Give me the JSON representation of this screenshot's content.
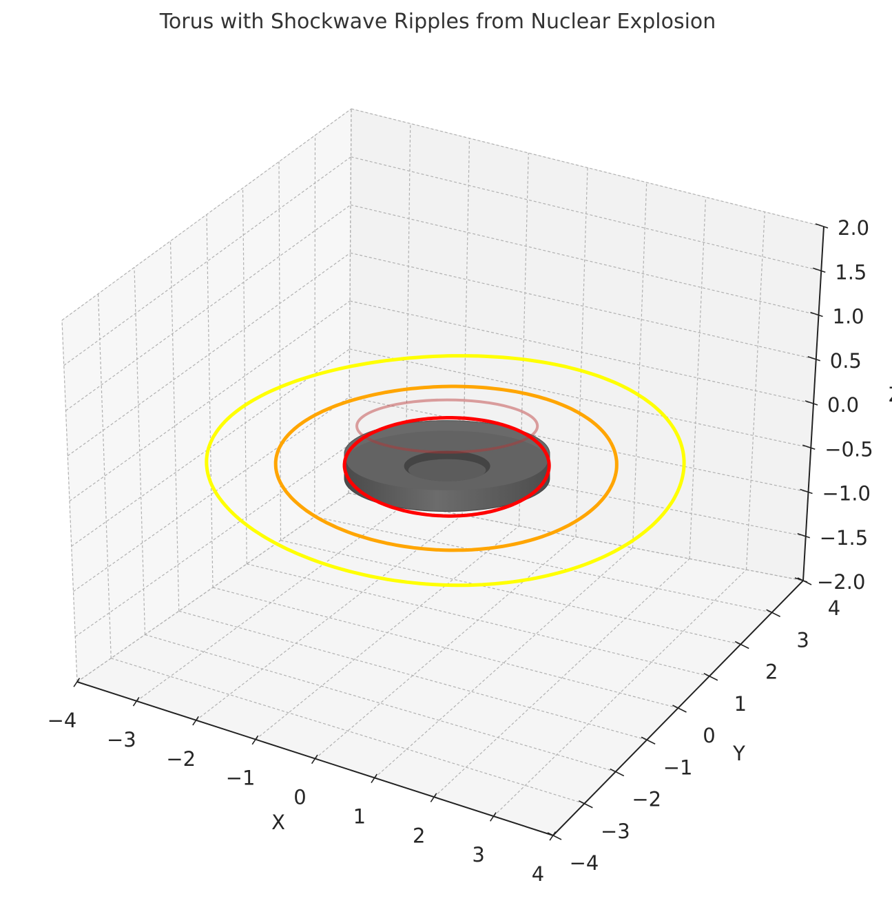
{
  "chart_data": {
    "type": "3d-surface",
    "title": "Torus with Shockwave Ripples from Nuclear Explosion",
    "xlabel": "X",
    "ylabel": "Y",
    "zlabel": "Z",
    "xlim": [
      -4,
      4
    ],
    "ylim": [
      -4,
      4
    ],
    "zlim": [
      -2,
      2
    ],
    "x_ticks": [
      -4,
      -3,
      -2,
      -1,
      0,
      1,
      2,
      3,
      4
    ],
    "y_ticks": [
      -4,
      -3,
      -2,
      -1,
      0,
      1,
      2,
      3,
      4
    ],
    "z_ticks": [
      -2.0,
      -1.5,
      -1.0,
      -0.5,
      0.0,
      0.5,
      1.0,
      1.5,
      2.0
    ],
    "x_tick_labels": [
      "−4",
      "−3",
      "−2",
      "−1",
      "0",
      "1",
      "2",
      "3",
      "4"
    ],
    "y_tick_labels": [
      "−4",
      "−3",
      "−2",
      "−1",
      "0",
      "1",
      "2",
      "3",
      "4"
    ],
    "z_tick_labels": [
      "−2.0",
      "−1.5",
      "−1.0",
      "−0.5",
      "0.0",
      "0.5",
      "1.0",
      "1.5",
      "2.0"
    ],
    "grid": true,
    "surface": {
      "shape": "torus",
      "major_radius": 1,
      "minor_radius": 0.5,
      "center": [
        0,
        0,
        0
      ],
      "color": "#5a5a5a"
    },
    "ripples": [
      {
        "radius": 1.5,
        "z": 0,
        "color": "#ff0000"
      },
      {
        "radius": 2.5,
        "z": 0,
        "color": "#ffa500"
      },
      {
        "radius": 3.5,
        "z": 0,
        "color": "#ffff00"
      }
    ]
  }
}
